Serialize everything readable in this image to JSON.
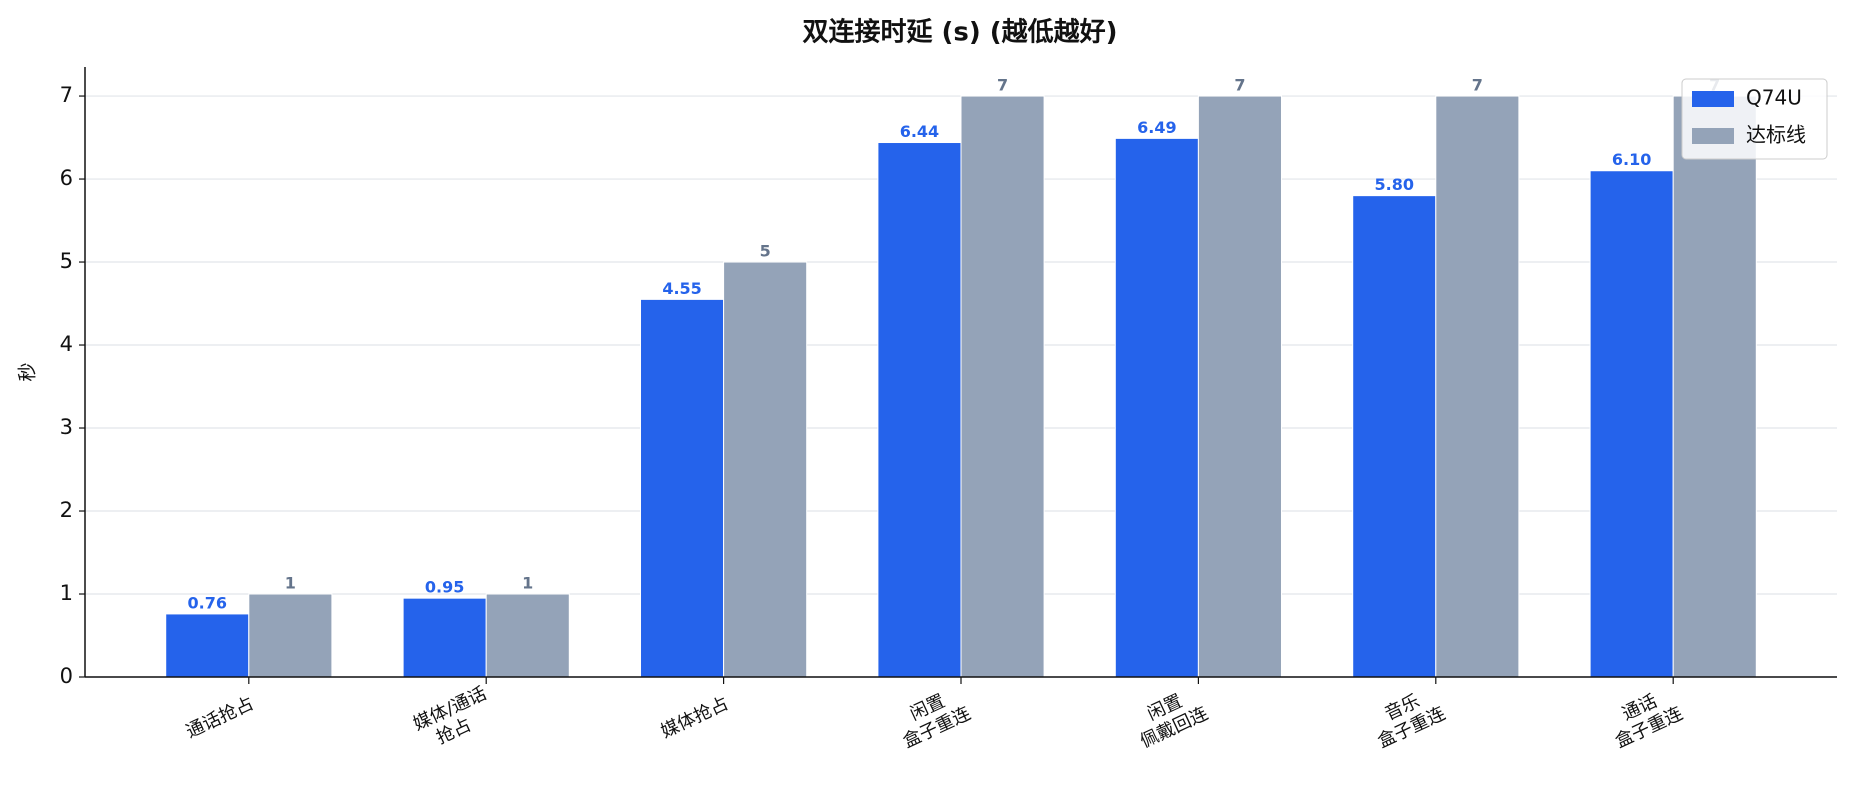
{
  "chart_data": {
    "type": "bar",
    "title": "双连接时延 (s) (越低越好)",
    "y_label": "秒",
    "categories": [
      "通话抢占",
      "媒体/通话\n抢占",
      "媒体抢占",
      "闲置\n盒子重连",
      "闲置\n佩戴回连",
      "音乐\n盒子重连",
      "通话\n盒子重连"
    ],
    "series": [
      {
        "name": "Q74U",
        "color": "#2563eb",
        "label_color": "#2563eb",
        "values": [
          0.76,
          0.95,
          4.55,
          6.44,
          6.49,
          5.8,
          6.1
        ],
        "value_labels": [
          "0.76",
          "0.95",
          "4.55",
          "6.44",
          "6.49",
          "5.80",
          "6.10"
        ]
      },
      {
        "name": "达标线",
        "color": "#94a3b8",
        "label_color": "#64748b",
        "values": [
          1,
          1,
          5,
          7,
          7,
          7,
          7
        ],
        "value_labels": [
          "1",
          "1",
          "5",
          "7",
          "7",
          "7",
          "7"
        ]
      }
    ],
    "ylim": [
      0,
      7.35
    ],
    "yticks": [
      0,
      1,
      2,
      3,
      4,
      5,
      6,
      7
    ],
    "grid": true,
    "legend": "upper right"
  }
}
